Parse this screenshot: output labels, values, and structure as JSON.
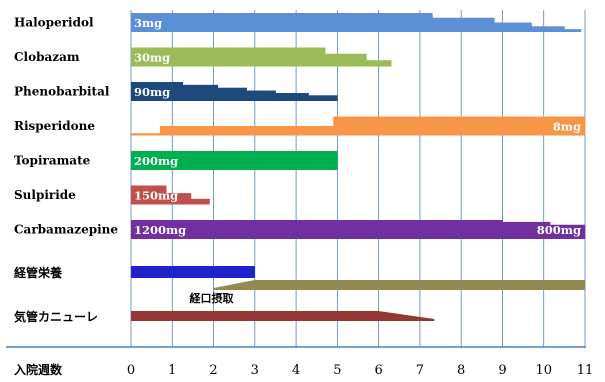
{
  "chart_data": {
    "type": "bar",
    "xlabel": "入院週数",
    "xlim": [
      0,
      11
    ],
    "xticks": [
      "0",
      "1",
      "2",
      "3",
      "4",
      "5",
      "6",
      "7",
      "8",
      "9",
      "10",
      "11"
    ],
    "grid": "vertical",
    "rows": [
      {
        "label": "Haloperidol",
        "color": "#5b8fd6",
        "dose_label": "3mg",
        "dose_label_end": "",
        "steps": [
          [
            0,
            7.3,
            1.0
          ],
          [
            7.3,
            8.8,
            0.75
          ],
          [
            8.8,
            9.7,
            0.5
          ],
          [
            9.7,
            10.5,
            0.3
          ],
          [
            10.5,
            10.9,
            0.15
          ]
        ]
      },
      {
        "label": "Clobazam",
        "color": "#9bbb59",
        "dose_label": "30mg",
        "dose_label_end": "",
        "steps": [
          [
            0,
            4.7,
            1.0
          ],
          [
            4.7,
            5.7,
            0.67
          ],
          [
            5.7,
            6.3,
            0.33
          ]
        ]
      },
      {
        "label": "Phenobarbital",
        "color": "#1f497d",
        "dose_label": "90mg",
        "dose_label_end": "",
        "steps": [
          [
            0,
            1.25,
            1.0
          ],
          [
            1.25,
            2.1,
            0.85
          ],
          [
            2.1,
            2.8,
            0.7
          ],
          [
            2.8,
            3.5,
            0.55
          ],
          [
            3.5,
            4.3,
            0.42
          ],
          [
            4.3,
            5.0,
            0.3
          ]
        ]
      },
      {
        "label": "Risperidone",
        "color": "#f79646",
        "dose_label": "",
        "dose_label_end": "8mg",
        "steps": [
          [
            0,
            0.7,
            0.12
          ],
          [
            0.7,
            4.9,
            0.5
          ],
          [
            4.9,
            11.0,
            1.0
          ]
        ]
      },
      {
        "label": "Topiramate",
        "color": "#00b050",
        "dose_label": "200mg",
        "dose_label_end": "",
        "steps": [
          [
            0,
            5.0,
            1.0
          ]
        ]
      },
      {
        "label": "Sulpiride",
        "color": "#c0504d",
        "dose_label": "150mg",
        "dose_label_end": "",
        "steps": [
          [
            0,
            0.85,
            1.0
          ],
          [
            0.85,
            1.45,
            0.6
          ],
          [
            1.45,
            1.9,
            0.3
          ]
        ]
      },
      {
        "label": "Carbamazepine",
        "color": "#7030a0",
        "dose_label": "1200mg",
        "dose_label_end": "800mg",
        "steps": [
          [
            0,
            9.0,
            1.0
          ],
          [
            9.0,
            10.15,
            0.9
          ],
          [
            10.15,
            11.0,
            0.75
          ]
        ]
      }
    ],
    "tube_feeding": {
      "label": "経管栄養",
      "color": "#2222cc",
      "start": 0,
      "end": 3.0,
      "oral_label": "経口摂取",
      "oral_color": "#938953",
      "oral_start": 2.0,
      "oral_ramp_end": 3.0,
      "oral_end": 11.0
    },
    "cannula": {
      "label": "気管カニューレ",
      "color": "#953735",
      "start": 0,
      "full_end": 6.0,
      "taper_end": 7.35
    }
  }
}
